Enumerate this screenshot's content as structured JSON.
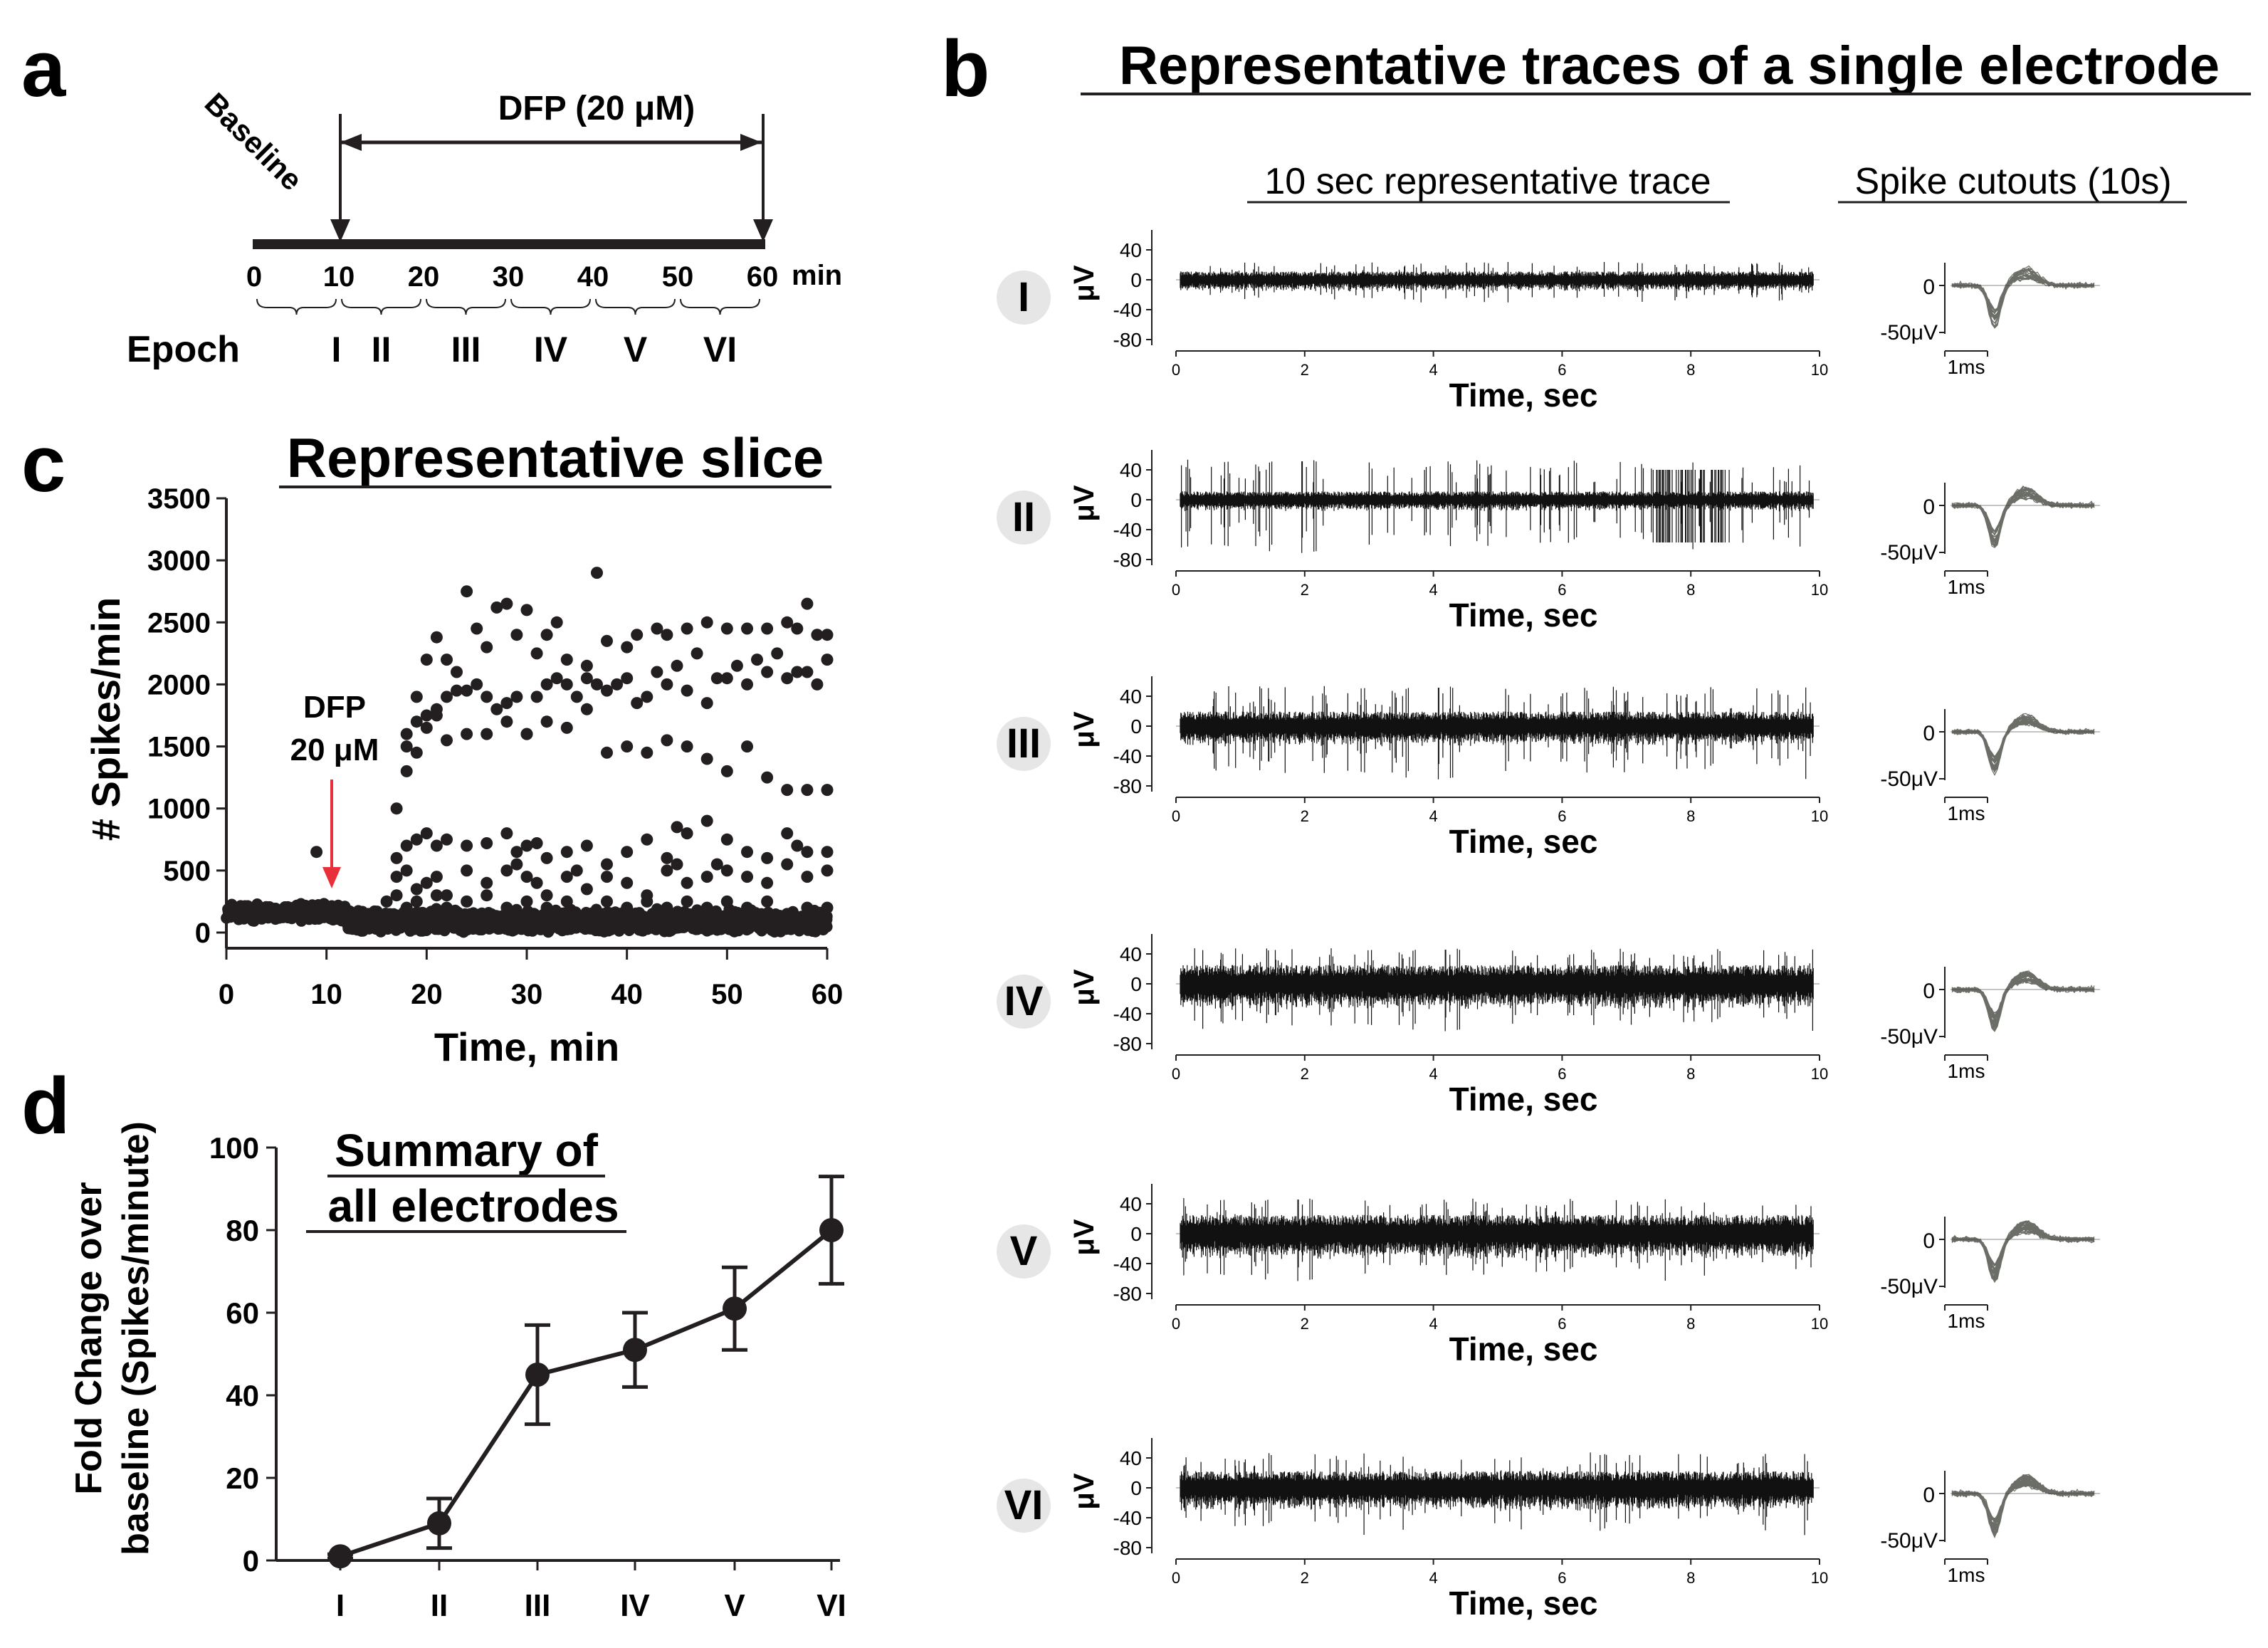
{
  "panels": {
    "a": {
      "letter": "a",
      "drug_label": "DFP (20 μM)",
      "baseline_label": "Baseline",
      "axis_ticks": [
        "0",
        "10",
        "20",
        "30",
        "40",
        "50",
        "60"
      ],
      "axis_unit": "min",
      "epoch_label": "Epoch",
      "epochs": [
        "I",
        "II",
        "III",
        "IV",
        "V",
        "VI"
      ]
    },
    "b": {
      "letter": "b",
      "title": "Representative traces of a single electrode",
      "col1_header": "10 sec representative trace",
      "col2_header": "Spike cutouts (10s)",
      "ylabel": "μV",
      "xlabel": "Time, sec",
      "yticks": [
        "40",
        "0",
        "-40",
        "-80"
      ],
      "xticks": [
        "0",
        "2",
        "4",
        "6",
        "8",
        "10"
      ],
      "cutout_zero": "0",
      "cutout_scale_v": "-50μV",
      "cutout_scale_t": "1ms",
      "epochs": [
        "I",
        "II",
        "III",
        "IV",
        "V",
        "VI"
      ],
      "trace_amplitude_uV": [
        {
          "epoch": "I",
          "noise": 8,
          "burst": 20
        },
        {
          "epoch": "II",
          "noise": 8,
          "burst": 45
        },
        {
          "epoch": "III",
          "noise": 14,
          "burst": 45
        },
        {
          "epoch": "IV",
          "noise": 18,
          "burst": 40
        },
        {
          "epoch": "V",
          "noise": 18,
          "burst": 40
        },
        {
          "epoch": "VI",
          "noise": 16,
          "burst": 40
        }
      ]
    },
    "c": {
      "letter": "c"
    },
    "d": {
      "letter": "d"
    }
  },
  "colors": {
    "ink": "#231f20",
    "arrow": "#e8303a",
    "epoch_bubble": "#e6e6e6",
    "cutout_trace": "#3a3d33"
  },
  "chart_data": [
    {
      "type": "scatter",
      "panel": "c",
      "title": "Representative slice",
      "xlabel": "Time, min",
      "ylabel": "# Spikes/min",
      "xlim": [
        0,
        60
      ],
      "ylim": [
        0,
        3500
      ],
      "xticks": [
        "0",
        "10",
        "20",
        "30",
        "40",
        "50",
        "60"
      ],
      "yticks": [
        "0",
        "500",
        "1000",
        "1500",
        "2000",
        "2500",
        "3000",
        "3500"
      ],
      "annotation": {
        "lines": [
          "DFP",
          "20 μM"
        ],
        "x": 10
      },
      "series": [
        {
          "values": [
            [
              17,
              1000
            ],
            [
              18,
              1600
            ],
            [
              19,
              1900
            ],
            [
              20,
              2200
            ],
            [
              21,
              2380
            ],
            [
              22,
              2200
            ],
            [
              23,
              2100
            ],
            [
              24,
              2750
            ],
            [
              25,
              2450
            ],
            [
              26,
              2300
            ],
            [
              27,
              2620
            ],
            [
              28,
              2650
            ],
            [
              29,
              2400
            ],
            [
              30,
              2600
            ],
            [
              31,
              2250
            ],
            [
              32,
              2400
            ],
            [
              33,
              2500
            ],
            [
              34,
              2200
            ],
            [
              36,
              2150
            ],
            [
              37,
              2900
            ],
            [
              38,
              2350
            ],
            [
              40,
              2300
            ],
            [
              41,
              2400
            ],
            [
              43,
              2450
            ],
            [
              44,
              2400
            ],
            [
              46,
              2450
            ],
            [
              48,
              2500
            ],
            [
              50,
              2450
            ],
            [
              52,
              2450
            ],
            [
              54,
              2450
            ],
            [
              56,
              2500
            ],
            [
              57,
              2450
            ],
            [
              58,
              2650
            ],
            [
              59,
              2400
            ],
            [
              60,
              2400
            ]
          ]
        },
        {
          "values": [
            [
              18,
              1300
            ],
            [
              19,
              1700
            ],
            [
              20,
              1750
            ],
            [
              21,
              1800
            ],
            [
              22,
              1900
            ],
            [
              23,
              1950
            ],
            [
              24,
              1950
            ],
            [
              25,
              2000
            ],
            [
              26,
              1900
            ],
            [
              27,
              1800
            ],
            [
              28,
              1850
            ],
            [
              29,
              1900
            ],
            [
              30,
              1600
            ],
            [
              31,
              1900
            ],
            [
              32,
              2000
            ],
            [
              33,
              2050
            ],
            [
              34,
              2000
            ],
            [
              35,
              1900
            ],
            [
              36,
              2050
            ],
            [
              37,
              2000
            ],
            [
              38,
              1950
            ],
            [
              39,
              2000
            ],
            [
              40,
              2050
            ],
            [
              41,
              1850
            ],
            [
              42,
              1900
            ],
            [
              43,
              2100
            ],
            [
              44,
              2000
            ],
            [
              45,
              2150
            ],
            [
              46,
              1950
            ],
            [
              47,
              2250
            ],
            [
              48,
              1850
            ],
            [
              49,
              2050
            ],
            [
              50,
              2050
            ],
            [
              51,
              2150
            ],
            [
              52,
              2000
            ],
            [
              53,
              2200
            ],
            [
              54,
              2100
            ],
            [
              55,
              2250
            ],
            [
              56,
              2050
            ],
            [
              57,
              2100
            ],
            [
              58,
              2100
            ],
            [
              59,
              2000
            ],
            [
              60,
              2200
            ]
          ]
        },
        {
          "values": [
            [
              18,
              1500
            ],
            [
              19,
              1450
            ],
            [
              20,
              1650
            ],
            [
              21,
              1750
            ],
            [
              22,
              1550
            ],
            [
              24,
              1600
            ],
            [
              26,
              1600
            ],
            [
              28,
              1700
            ],
            [
              30,
              1600
            ],
            [
              32,
              1700
            ],
            [
              34,
              1650
            ],
            [
              36,
              1800
            ],
            [
              38,
              1450
            ],
            [
              40,
              1500
            ],
            [
              42,
              1450
            ],
            [
              44,
              1550
            ],
            [
              46,
              1500
            ],
            [
              48,
              1400
            ],
            [
              50,
              1300
            ],
            [
              52,
              1500
            ],
            [
              54,
              1250
            ],
            [
              56,
              1150
            ],
            [
              58,
              1150
            ],
            [
              60,
              1150
            ]
          ]
        },
        {
          "values": [
            [
              17,
              600
            ],
            [
              18,
              700
            ],
            [
              19,
              750
            ],
            [
              20,
              800
            ],
            [
              21,
              700
            ],
            [
              22,
              750
            ],
            [
              24,
              700
            ],
            [
              26,
              720
            ],
            [
              28,
              800
            ],
            [
              29,
              650
            ],
            [
              30,
              700
            ],
            [
              31,
              720
            ],
            [
              32,
              600
            ],
            [
              34,
              650
            ],
            [
              36,
              700
            ],
            [
              38,
              550
            ],
            [
              40,
              650
            ],
            [
              42,
              750
            ],
            [
              44,
              600
            ],
            [
              45,
              850
            ],
            [
              46,
              800
            ],
            [
              48,
              900
            ],
            [
              50,
              750
            ],
            [
              52,
              650
            ],
            [
              54,
              600
            ],
            [
              56,
              800
            ],
            [
              57,
              700
            ],
            [
              58,
              650
            ],
            [
              60,
              650
            ]
          ]
        },
        {
          "values": [
            [
              17,
              450
            ],
            [
              18,
              500
            ],
            [
              19,
              350
            ],
            [
              20,
              400
            ],
            [
              21,
              450
            ],
            [
              22,
              300
            ],
            [
              24,
              500
            ],
            [
              26,
              400
            ],
            [
              28,
              500
            ],
            [
              29,
              550
            ],
            [
              30,
              450
            ],
            [
              31,
              400
            ],
            [
              32,
              300
            ],
            [
              34,
              450
            ],
            [
              35,
              500
            ],
            [
              36,
              350
            ],
            [
              38,
              450
            ],
            [
              40,
              400
            ],
            [
              42,
              300
            ],
            [
              44,
              500
            ],
            [
              45,
              550
            ],
            [
              46,
              400
            ],
            [
              48,
              450
            ],
            [
              49,
              550
            ],
            [
              50,
              500
            ],
            [
              52,
              450
            ],
            [
              54,
              400
            ],
            [
              56,
              550
            ],
            [
              58,
              450
            ],
            [
              60,
              500
            ]
          ]
        },
        {
          "values": [
            [
              16,
              250
            ],
            [
              17,
              300
            ],
            [
              18,
              200
            ],
            [
              19,
              250
            ],
            [
              20,
              150
            ],
            [
              21,
              300
            ],
            [
              22,
              200
            ],
            [
              24,
              250
            ],
            [
              26,
              300
            ],
            [
              28,
              200
            ],
            [
              30,
              250
            ],
            [
              32,
              200
            ],
            [
              34,
              250
            ],
            [
              36,
              150
            ],
            [
              38,
              250
            ],
            [
              40,
              200
            ],
            [
              42,
              250
            ],
            [
              44,
              200
            ],
            [
              46,
              250
            ],
            [
              48,
              200
            ],
            [
              50,
              250
            ],
            [
              52,
              200
            ],
            [
              54,
              250
            ],
            [
              56,
              150
            ],
            [
              58,
              200
            ],
            [
              60,
              200
            ]
          ]
        },
        {
          "values": [
            [
              9,
              650
            ]
          ]
        }
      ],
      "baseline_band": {
        "x": [
          0,
          60
        ],
        "y": [
          0,
          260
        ],
        "note": "dense cluster of points near zero"
      }
    },
    {
      "type": "line",
      "panel": "d",
      "title": "Summary of all electrodes",
      "xlabel": "",
      "ylabel_lines": [
        "Fold Change  over",
        "baseline (Spikes/minute)"
      ],
      "categories": [
        "I",
        "II",
        "III",
        "IV",
        "V",
        "VI"
      ],
      "values": [
        1,
        9,
        45,
        51,
        61,
        80
      ],
      "errors": [
        0.5,
        6,
        12,
        9,
        10,
        13
      ],
      "ylim": [
        0,
        100
      ],
      "yticks": [
        "0",
        "20",
        "40",
        "60",
        "80",
        "100"
      ]
    }
  ]
}
